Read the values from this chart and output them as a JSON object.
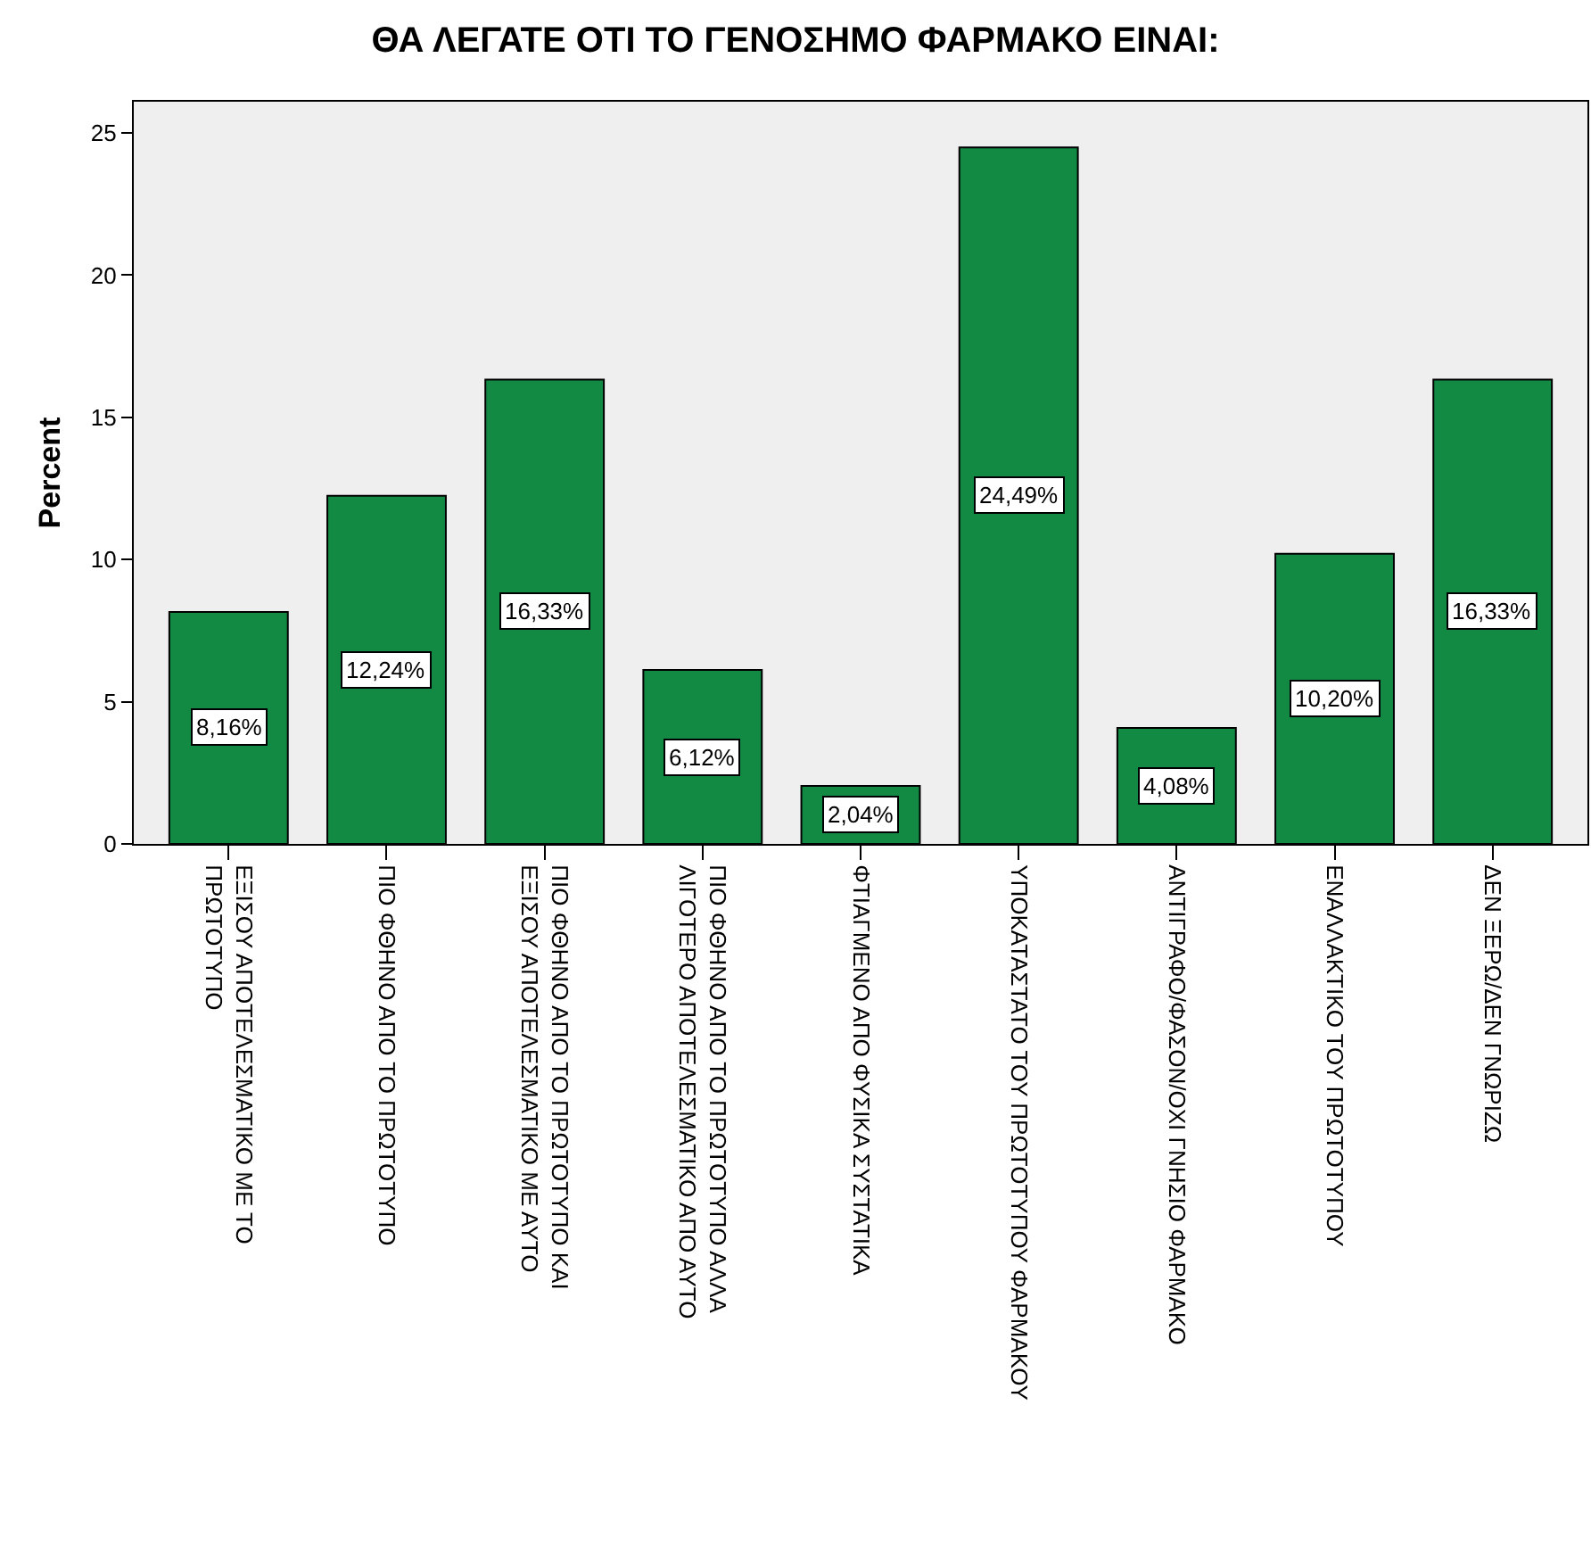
{
  "chart_data": {
    "type": "bar",
    "title": "ΘΑ ΛΕΓΑΤΕ ΟΤΙ ΤΟ ΓΕΝΟΣΗΜΟ ΦΑΡΜΑΚΟ ΕΙΝΑΙ:",
    "ylabel": "Percent",
    "categories": [
      "ΕΞΙΣΟΥ ΑΠΟΤΕΛΕΣΜΑΤΙΚΟ ΜΕ ΤΟ ΠΡΩΤΟΤΥΠΟ",
      "ΠΙΟ ΦΘΗΝΟ ΑΠΟ ΤΟ ΠΡΩΤΟΤΥΠΟ",
      "ΠΙΟ ΦΘΗΝΟ ΑΠΟ ΤΟ ΠΡΩΤΟΤΥΠΟ ΚΑΙ ΕΞΙΣΟΥ ΑΠΟΤΕΛΕΣΜΑΤΙΚΟ ΜΕ ΑΥΤΟ",
      "ΠΙΟ ΦΘΗΝΟ ΑΠΟ ΤΟ ΠΡΩΤΟΤΥΠΟ ΑΛΛΑ ΛΙΓΟΤΕΡΟ ΑΠΟΤΕΛΕΣΜΑΤΙΚΟ ΑΠΟ ΑΥΤΟ",
      "ΦΤΙΑΓΜΕΝΟ ΑΠΟ ΦΥΣΙΚΑ ΣΥΣΤΑΤΙΚΑ",
      "ΥΠΟΚΑΤΑΣΤΑΤΟ ΤΟΥ ΠΡΩΤΟΤΥΠΟΥ ΦΑΡΜΑΚΟΥ",
      "ΑΝΤΙΓΡΑΦΟ/ΦΑΣΟΝ/ΟΧΙ ΓΝΗΣΙΟ ΦΑΡΜΑΚΟ",
      "ΕΝΑΛΛΑΚΤΙΚΟ ΤΟΥ ΠΡΩΤΟΤΥΠΟΥ",
      "ΔΕΝ ΞΕΡΩ/ΔΕΝ ΓΝΩΡΙΖΩ"
    ],
    "values": [
      8.16,
      12.24,
      16.33,
      6.12,
      2.04,
      24.49,
      4.08,
      10.2,
      16.33
    ],
    "value_labels": [
      "8,16%",
      "12,24%",
      "16,33%",
      "6,12%",
      "2,04%",
      "24,49%",
      "4,08%",
      "10,20%",
      "16,33%"
    ],
    "color": "#138a43",
    "ylim": [
      0,
      26.1
    ],
    "yticks": [
      0,
      5,
      10,
      15,
      20,
      25
    ],
    "grid": false
  }
}
